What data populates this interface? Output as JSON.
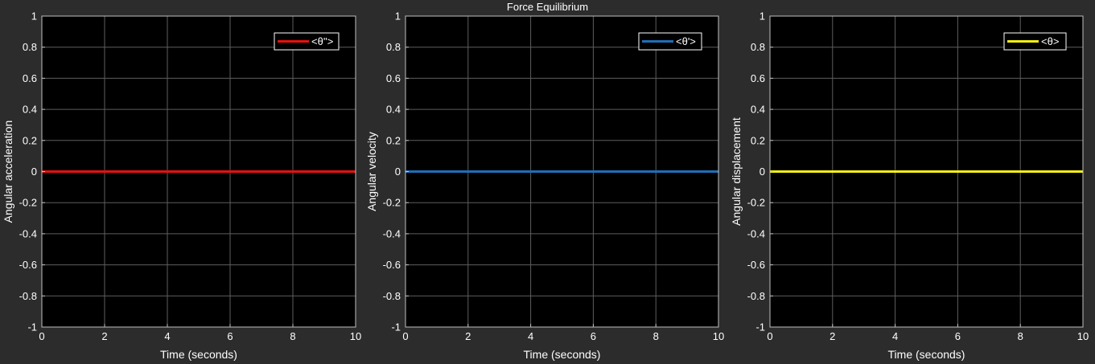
{
  "figure": {
    "title": "Force Equilibrium",
    "background": "#2c2c2c"
  },
  "chart_data": [
    {
      "type": "line",
      "title": "",
      "xlabel": "Time (seconds)",
      "ylabel": "Angular acceleration",
      "xlim": [
        0,
        10
      ],
      "ylim": [
        -1,
        1
      ],
      "xticks": [
        0,
        2,
        4,
        6,
        8,
        10
      ],
      "yticks": [
        -1,
        -0.8,
        -0.6,
        -0.4,
        -0.2,
        0,
        0.2,
        0.4,
        0.6,
        0.8,
        1
      ],
      "xtick_labels": [
        "0",
        "2",
        "4",
        "6",
        "8",
        "10"
      ],
      "ytick_labels": [
        "-1",
        "-0.8",
        "-0.6",
        "-0.4",
        "-0.2",
        "0",
        "0.2",
        "0.4",
        "0.6",
        "0.8",
        "1"
      ],
      "grid": true,
      "legend_position": "top-right",
      "axes_background": "#000000",
      "series": [
        {
          "name": "<θ''>",
          "color": "#e8100d",
          "x": [
            0,
            10
          ],
          "y": [
            0,
            0
          ]
        }
      ]
    },
    {
      "type": "line",
      "title": "",
      "xlabel": "Time (seconds)",
      "ylabel": "Angular velocity",
      "xlim": [
        0,
        10
      ],
      "ylim": [
        -1,
        1
      ],
      "xticks": [
        0,
        2,
        4,
        6,
        8,
        10
      ],
      "yticks": [
        -1,
        -0.8,
        -0.6,
        -0.4,
        -0.2,
        0,
        0.2,
        0.4,
        0.6,
        0.8,
        1
      ],
      "xtick_labels": [
        "0",
        "2",
        "4",
        "6",
        "8",
        "10"
      ],
      "ytick_labels": [
        "-1",
        "-0.8",
        "-0.6",
        "-0.4",
        "-0.2",
        "0",
        "0.2",
        "0.4",
        "0.6",
        "0.8",
        "1"
      ],
      "grid": true,
      "legend_position": "top-right",
      "axes_background": "#000000",
      "series": [
        {
          "name": "<θ'>",
          "color": "#1f6fb8",
          "x": [
            0,
            10
          ],
          "y": [
            0,
            0
          ]
        }
      ]
    },
    {
      "type": "line",
      "title": "",
      "xlabel": "Time (seconds)",
      "ylabel": "Angular displacement",
      "xlim": [
        0,
        10
      ],
      "ylim": [
        -1,
        1
      ],
      "xticks": [
        0,
        2,
        4,
        6,
        8,
        10
      ],
      "yticks": [
        -1,
        -0.8,
        -0.6,
        -0.4,
        -0.2,
        0,
        0.2,
        0.4,
        0.6,
        0.8,
        1
      ],
      "xtick_labels": [
        "0",
        "2",
        "4",
        "6",
        "8",
        "10"
      ],
      "ytick_labels": [
        "-1",
        "-0.8",
        "-0.6",
        "-0.4",
        "-0.2",
        "0",
        "0.2",
        "0.4",
        "0.6",
        "0.8",
        "1"
      ],
      "grid": true,
      "legend_position": "top-right",
      "axes_background": "#000000",
      "series": [
        {
          "name": "<θ>",
          "color": "#f5f212",
          "x": [
            0,
            10
          ],
          "y": [
            0,
            0
          ]
        }
      ]
    }
  ]
}
